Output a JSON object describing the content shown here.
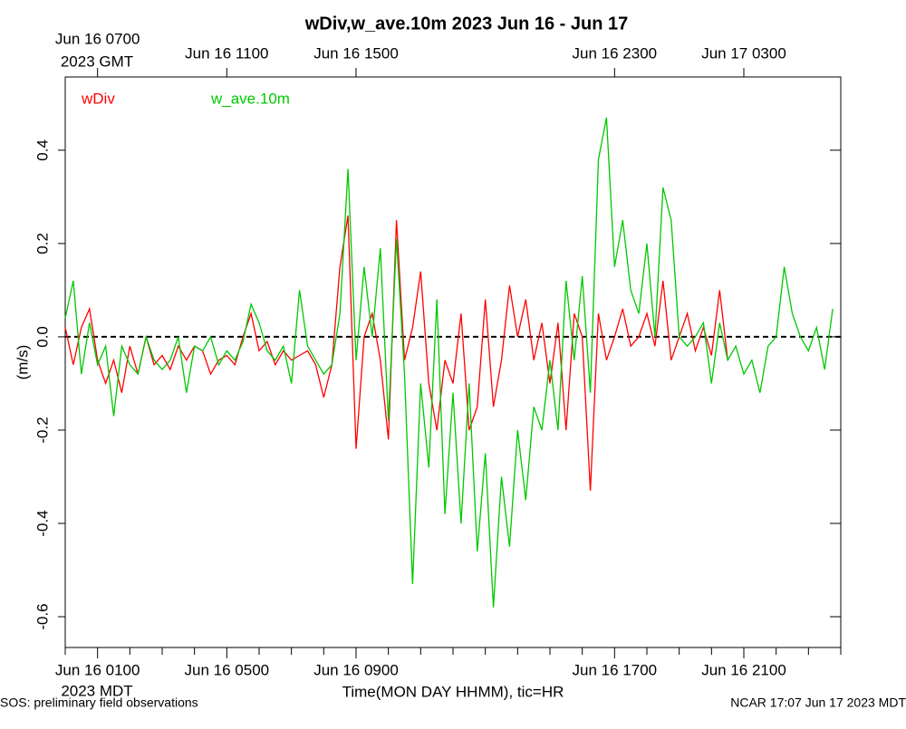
{
  "chart_data": {
    "type": "line",
    "title": "wDiv,w_ave.10m 2023 Jun 16 - Jun 17",
    "ylabel": "(m/s)",
    "xlabel": "Time(MON DAY HHMM), tic=HR",
    "bottom_axis_note": "2023 MDT",
    "top_axis_note": "2023 GMT",
    "footer_left": "SOS: preliminary field observations",
    "footer_right": "NCAR 17:07 Jun 17 2023 MDT",
    "reference_line": 0,
    "ylim": [
      -0.666,
      0.557
    ],
    "yticks": [
      -0.6,
      -0.4,
      -0.2,
      {
        "value": 0,
        "label": "0.0"
      },
      0.2,
      0.4
    ],
    "xlim": [
      "2023-06-16 00:00",
      "2023-06-17 00:00"
    ],
    "xticks": [
      "2023-06-16 00:00",
      {
        "value": "2023-06-16 01:00",
        "label": "Jun 16 0100"
      },
      "2023-06-16 02:00",
      "2023-06-16 03:00",
      "2023-06-16 04:00",
      {
        "value": "2023-06-16 05:00",
        "label": "Jun 16 0500"
      },
      "2023-06-16 06:00",
      "2023-06-16 07:00",
      "2023-06-16 08:00",
      {
        "value": "2023-06-16 09:00",
        "label": "Jun 16 0900"
      },
      "2023-06-16 10:00",
      "2023-06-16 11:00",
      "2023-06-16 12:00",
      "2023-06-16 13:00",
      "2023-06-16 14:00",
      "2023-06-16 15:00",
      "2023-06-16 16:00",
      {
        "value": "2023-06-16 17:00",
        "label": "Jun 16 1700"
      },
      "2023-06-16 18:00",
      "2023-06-16 19:00",
      "2023-06-16 20:00",
      {
        "value": "2023-06-16 21:00",
        "label": "Jun 16 2100"
      },
      "2023-06-16 22:00",
      "2023-06-16 23:00",
      "2023-06-17 00:00"
    ],
    "top_xticks": [
      {
        "value": "2023-06-16 01:00",
        "label": "Jun 16 0700"
      },
      {
        "value": "2023-06-16 05:00",
        "label": "Jun 16 1100"
      },
      {
        "value": "2023-06-16 09:00",
        "label": "Jun 16 1500"
      },
      {
        "value": "2023-06-16 17:00",
        "label": "Jun 16 2300"
      },
      {
        "value": "2023-06-16 21:00",
        "label": "Jun 17 0300"
      }
    ],
    "x": [
      "2023-06-16 00:00",
      "2023-06-16 00:15",
      "2023-06-16 00:30",
      "2023-06-16 00:45",
      "2023-06-16 01:00",
      "2023-06-16 01:15",
      "2023-06-16 01:30",
      "2023-06-16 01:45",
      "2023-06-16 02:00",
      "2023-06-16 02:15",
      "2023-06-16 02:30",
      "2023-06-16 02:45",
      "2023-06-16 03:00",
      "2023-06-16 03:15",
      "2023-06-16 03:30",
      "2023-06-16 03:45",
      "2023-06-16 04:00",
      "2023-06-16 04:15",
      "2023-06-16 04:30",
      "2023-06-16 04:45",
      "2023-06-16 05:00",
      "2023-06-16 05:15",
      "2023-06-16 05:30",
      "2023-06-16 05:45",
      "2023-06-16 06:00",
      "2023-06-16 06:15",
      "2023-06-16 06:30",
      "2023-06-16 06:45",
      "2023-06-16 07:00",
      "2023-06-16 07:15",
      "2023-06-16 07:30",
      "2023-06-16 07:45",
      "2023-06-16 08:00",
      "2023-06-16 08:15",
      "2023-06-16 08:30",
      "2023-06-16 08:45",
      "2023-06-16 09:00",
      "2023-06-16 09:15",
      "2023-06-16 09:30",
      "2023-06-16 09:45",
      "2023-06-16 10:00",
      "2023-06-16 10:15",
      "2023-06-16 10:30",
      "2023-06-16 10:45",
      "2023-06-16 11:00",
      "2023-06-16 11:15",
      "2023-06-16 11:30",
      "2023-06-16 11:45",
      "2023-06-16 12:00",
      "2023-06-16 12:15",
      "2023-06-16 12:30",
      "2023-06-16 12:45",
      "2023-06-16 13:00",
      "2023-06-16 13:15",
      "2023-06-16 13:30",
      "2023-06-16 13:45",
      "2023-06-16 14:00",
      "2023-06-16 14:15",
      "2023-06-16 14:30",
      "2023-06-16 14:45",
      "2023-06-16 15:00",
      "2023-06-16 15:15",
      "2023-06-16 15:30",
      "2023-06-16 15:45",
      "2023-06-16 16:00",
      "2023-06-16 16:15",
      "2023-06-16 16:30",
      "2023-06-16 16:45",
      "2023-06-16 17:00",
      "2023-06-16 17:15",
      "2023-06-16 17:30",
      "2023-06-16 17:45",
      "2023-06-16 18:00",
      "2023-06-16 18:15",
      "2023-06-16 18:30",
      "2023-06-16 18:45",
      "2023-06-16 19:00",
      "2023-06-16 19:15",
      "2023-06-16 19:30",
      "2023-06-16 19:45",
      "2023-06-16 20:00",
      "2023-06-16 20:15",
      "2023-06-16 20:30",
      "2023-06-16 20:45",
      "2023-06-16 21:00",
      "2023-06-16 21:15",
      "2023-06-16 21:30",
      "2023-06-16 21:45",
      "2023-06-16 22:00",
      "2023-06-16 22:15",
      "2023-06-16 22:30",
      "2023-06-16 22:45",
      "2023-06-16 23:00",
      "2023-06-16 23:15",
      "2023-06-16 23:30",
      "2023-06-16 23:45"
    ],
    "series": [
      {
        "name": "wDiv",
        "color": "#ff0000",
        "values": [
          0.02,
          -0.06,
          0.02,
          0.06,
          -0.05,
          -0.1,
          -0.05,
          -0.12,
          -0.02,
          -0.08,
          0.0,
          -0.06,
          -0.04,
          -0.07,
          -0.02,
          -0.05,
          -0.02,
          -0.03,
          -0.08,
          -0.05,
          -0.04,
          -0.06,
          0.0,
          0.05,
          -0.03,
          -0.01,
          -0.06,
          -0.03,
          -0.05,
          -0.04,
          -0.03,
          -0.06,
          -0.13,
          -0.06,
          0.15,
          0.26,
          -0.24,
          0.0,
          0.05,
          -0.05,
          -0.22,
          0.25,
          -0.05,
          0.02,
          0.14,
          -0.1,
          -0.2,
          -0.05,
          -0.1,
          0.05,
          -0.2,
          -0.15,
          0.08,
          -0.15,
          -0.05,
          0.11,
          0.0,
          0.08,
          -0.05,
          0.03,
          -0.1,
          0.03,
          -0.2,
          0.05,
          0.0,
          -0.33,
          0.05,
          -0.05,
          0.0,
          0.06,
          -0.02,
          0.0,
          0.05,
          -0.02,
          0.12,
          -0.05,
          0.0,
          0.05,
          -0.03,
          0.02,
          -0.04,
          0.1,
          -0.05,
          null,
          null,
          null,
          null,
          null,
          null,
          null,
          null,
          null,
          null,
          null,
          null,
          null
        ]
      },
      {
        "name": "w_ave.10m",
        "color": "#00c800",
        "values": [
          0.04,
          0.12,
          -0.08,
          0.03,
          -0.06,
          -0.02,
          -0.17,
          -0.02,
          -0.06,
          -0.08,
          0.0,
          -0.05,
          -0.07,
          -0.05,
          0.0,
          -0.12,
          -0.02,
          -0.03,
          0.0,
          -0.06,
          -0.03,
          -0.05,
          -0.01,
          0.07,
          0.03,
          -0.03,
          -0.05,
          -0.02,
          -0.1,
          0.1,
          -0.02,
          -0.05,
          -0.08,
          -0.06,
          0.05,
          0.36,
          -0.05,
          0.15,
          0.0,
          0.19,
          -0.18,
          0.21,
          -0.08,
          -0.53,
          -0.1,
          -0.28,
          0.08,
          -0.38,
          -0.12,
          -0.4,
          -0.1,
          -0.46,
          -0.25,
          -0.58,
          -0.3,
          -0.45,
          -0.2,
          -0.35,
          -0.15,
          -0.2,
          -0.05,
          -0.2,
          0.12,
          -0.05,
          0.13,
          -0.12,
          0.38,
          0.47,
          0.15,
          0.25,
          0.1,
          0.05,
          0.2,
          0.0,
          0.32,
          0.25,
          0.0,
          -0.02,
          0.0,
          0.03,
          -0.1,
          0.03,
          -0.05,
          -0.02,
          -0.08,
          -0.05,
          -0.12,
          -0.02,
          0.0,
          0.15,
          0.05,
          0.0,
          -0.03,
          0.02,
          -0.07,
          0.06
        ]
      }
    ]
  }
}
